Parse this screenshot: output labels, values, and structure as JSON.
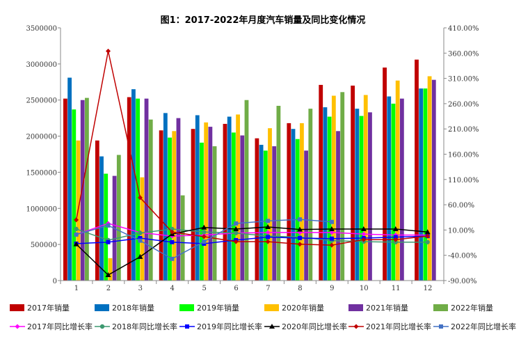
{
  "chart_data": {
    "type": "bar+line",
    "title": "图1：2017-2022年月度汽车销量及同比变化情况",
    "categories": [
      "1",
      "2",
      "3",
      "4",
      "5",
      "6",
      "7",
      "8",
      "9",
      "10",
      "11",
      "12"
    ],
    "left_axis": {
      "ylim": [
        0,
        3500000
      ],
      "ticks": [
        "0",
        "500000",
        "1000000",
        "1500000",
        "2000000",
        "2500000",
        "3000000",
        "3500000"
      ]
    },
    "right_axis": {
      "ylim": [
        -90,
        410
      ],
      "ticks": [
        "-90.00%",
        "-40.00%",
        "10.00%",
        "60.00%",
        "110.00%",
        "160.00%",
        "210.00%",
        "260.00%",
        "310.00%",
        "360.00%",
        "410.00%"
      ]
    },
    "grid": false,
    "legend_position": "bottom",
    "bar_series": [
      {
        "name": "2017年销量",
        "color": "#C00000",
        "values": [
          2520000,
          1940000,
          2540000,
          2080000,
          2100000,
          2170000,
          1970000,
          2180000,
          2710000,
          2700000,
          2950000,
          3060000
        ]
      },
      {
        "name": "2018年销量",
        "color": "#0070C0",
        "values": [
          2810000,
          1720000,
          2650000,
          2320000,
          2290000,
          2270000,
          1880000,
          2100000,
          2400000,
          2380000,
          2550000,
          2660000
        ]
      },
      {
        "name": "2019年销量",
        "color": "#00FF00",
        "values": [
          2370000,
          1480000,
          2520000,
          1980000,
          1910000,
          2050000,
          1800000,
          1960000,
          2270000,
          2280000,
          2450000,
          2660000
        ]
      },
      {
        "name": "2020年销量",
        "color": "#FFC000",
        "values": [
          1940000,
          310000,
          1430000,
          2070000,
          2190000,
          2300000,
          2110000,
          2180000,
          2560000,
          2570000,
          2770000,
          2830000
        ]
      },
      {
        "name": "2021年销量",
        "color": "#7030A0",
        "values": [
          2500000,
          1450000,
          2520000,
          2250000,
          2130000,
          2010000,
          1860000,
          1800000,
          2070000,
          2330000,
          2520000,
          2780000
        ]
      },
      {
        "name": "2022年销量",
        "color": "#70AD47",
        "values": [
          2530000,
          1740000,
          2230000,
          1180000,
          1860000,
          2500000,
          2420000,
          2380000,
          2610000,
          null,
          null,
          null
        ]
      }
    ],
    "line_series": [
      {
        "name": "2017年同比增长率",
        "color": "#FF00FF",
        "marker": "diamond",
        "values": [
          1,
          23,
          5,
          -2,
          0,
          4,
          5,
          5,
          5,
          2,
          0,
          0
        ]
      },
      {
        "name": "2018年同比增长率",
        "color": "#3D9970",
        "marker": "circle",
        "values": [
          12,
          -10,
          4,
          12,
          6,
          4,
          -2,
          -4,
          -11,
          -13,
          -14,
          -14
        ]
      },
      {
        "name": "2019年同比增长率",
        "color": "#0000FF",
        "marker": "square",
        "values": [
          -17,
          -14,
          -6,
          -14,
          -17,
          -10,
          -4,
          -6,
          -7,
          -6,
          -4,
          -2
        ]
      },
      {
        "name": "2020年同比增长率",
        "color": "#000000",
        "marker": "triangle",
        "values": [
          -18,
          -79,
          -43,
          2,
          15,
          12,
          16,
          11,
          12,
          12,
          12,
          6
        ]
      },
      {
        "name": "2021年同比增长率",
        "color": "#C00000",
        "marker": "diamond",
        "values": [
          30,
          364,
          74,
          6,
          -3,
          -13,
          -13,
          -18,
          -20,
          -9,
          -9,
          -2
        ]
      },
      {
        "name": "2022年同比增长率",
        "color": "#4472C4",
        "marker": "square",
        "values": [
          1,
          19,
          -11,
          -47,
          -13,
          23,
          28,
          31,
          26,
          null,
          null,
          null
        ]
      }
    ]
  }
}
